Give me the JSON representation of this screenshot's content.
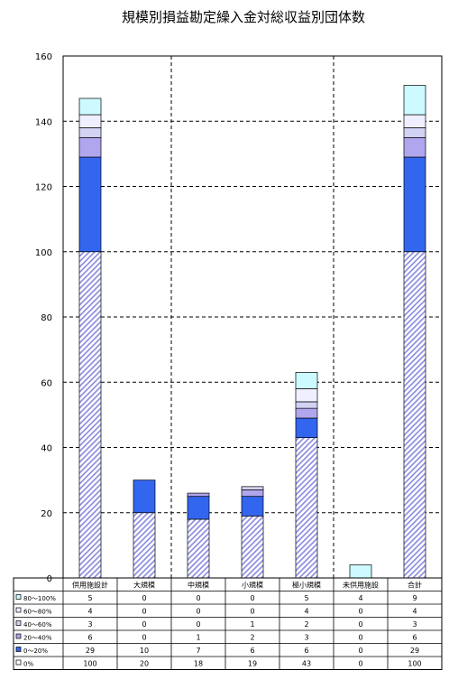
{
  "chart_data": {
    "type": "bar",
    "stacked": true,
    "title": "規模別損益勘定繰入金対総収益別団体数",
    "xlabel": "",
    "ylabel": "",
    "ylim": [
      0,
      160
    ],
    "yticks": [
      0,
      20,
      40,
      60,
      80,
      100,
      120,
      140,
      160
    ],
    "grid": true,
    "legend_placement": "data table",
    "categories": [
      "供用施設計",
      "大規模",
      "中規模",
      "小規模",
      "極小規模",
      "未供用施設",
      "合計"
    ],
    "series": [
      {
        "name": "0%",
        "values": [
          100,
          20,
          18,
          19,
          43,
          0,
          100
        ],
        "color": "#9999dd",
        "pattern": "hatch"
      },
      {
        "name": "0～20%",
        "values": [
          29,
          10,
          7,
          6,
          6,
          0,
          29
        ],
        "color": "#3366ee"
      },
      {
        "name": "20～40%",
        "values": [
          6,
          0,
          1,
          2,
          3,
          0,
          6
        ],
        "color": "#b0a6ee"
      },
      {
        "name": "40～60%",
        "values": [
          3,
          0,
          0,
          1,
          2,
          0,
          3
        ],
        "color": "#d2d2f4"
      },
      {
        "name": "60～80%",
        "values": [
          4,
          0,
          0,
          0,
          4,
          0,
          4
        ],
        "color": "#efefff"
      },
      {
        "name": "80～100%",
        "values": [
          5,
          0,
          0,
          0,
          5,
          4,
          9
        ],
        "color": "#ccfaff"
      }
    ]
  }
}
